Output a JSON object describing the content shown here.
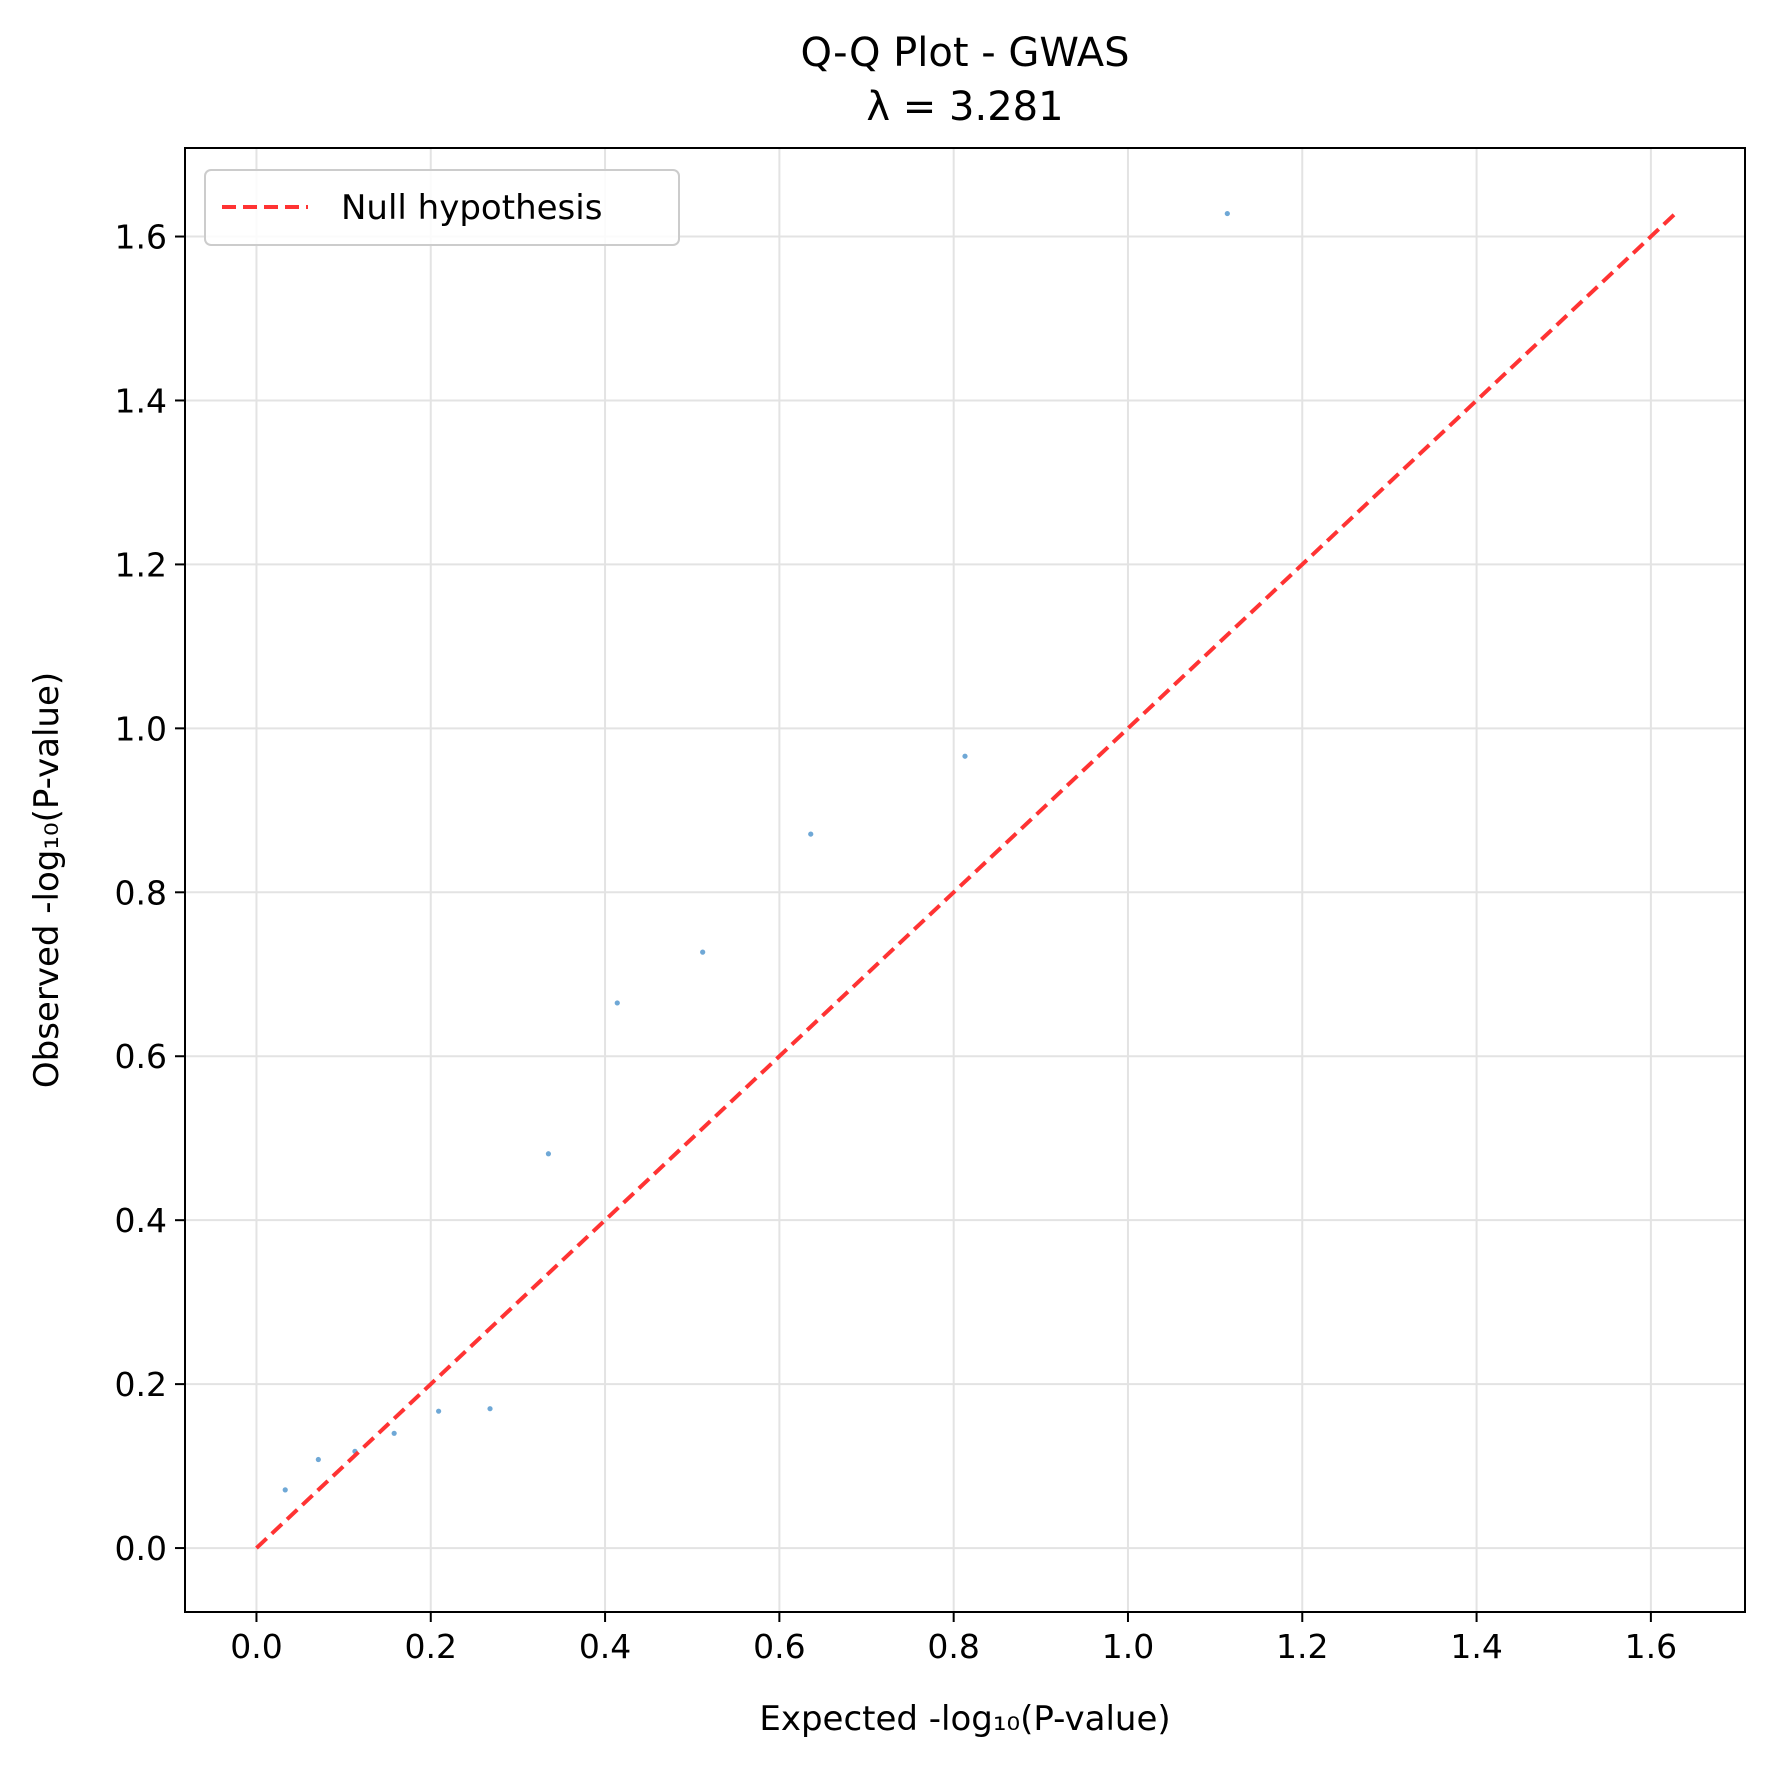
{
  "chart_data": {
    "type": "scatter",
    "title": "Q-Q Plot - GWAS",
    "subtitle": "λ = 3.281",
    "xlabel": "Expected -log₁₀(P-value)",
    "ylabel": "Observed -log₁₀(P-value)",
    "xlim": [
      -0.082,
      1.708
    ],
    "ylim": [
      -0.078,
      1.708
    ],
    "xticks": [
      0.0,
      0.2,
      0.4,
      0.6,
      0.8,
      1.0,
      1.2,
      1.4,
      1.6
    ],
    "yticks": [
      0.0,
      0.2,
      0.4,
      0.6,
      0.8,
      1.0,
      1.2,
      1.4,
      1.6
    ],
    "xtick_labels": [
      "0.0",
      "0.2",
      "0.4",
      "0.6",
      "0.8",
      "1.0",
      "1.2",
      "1.4",
      "1.6"
    ],
    "ytick_labels": [
      "0.0",
      "0.2",
      "0.4",
      "0.6",
      "0.8",
      "1.0",
      "1.2",
      "1.4",
      "1.6"
    ],
    "grid": true,
    "legend_position": "top-left",
    "colors": {
      "points": "#6fa8d6",
      "null_line": "#ff3333",
      "grid": "#e3e3e3",
      "axes": "#000000"
    },
    "series": [
      {
        "type": "scatter",
        "x": [
          0.033,
          0.071,
          0.113,
          0.158,
          0.209,
          0.268,
          0.335,
          0.414,
          0.512,
          0.636,
          0.813,
          1.114
        ],
        "y": [
          0.071,
          0.108,
          0.118,
          0.14,
          0.167,
          0.17,
          0.481,
          0.665,
          0.727,
          0.871,
          0.966,
          1.628
        ]
      },
      {
        "name": "Null hypothesis",
        "type": "line",
        "style": "dashed",
        "x": [
          0.0,
          1.628
        ],
        "y": [
          0.0,
          1.628
        ]
      }
    ]
  }
}
